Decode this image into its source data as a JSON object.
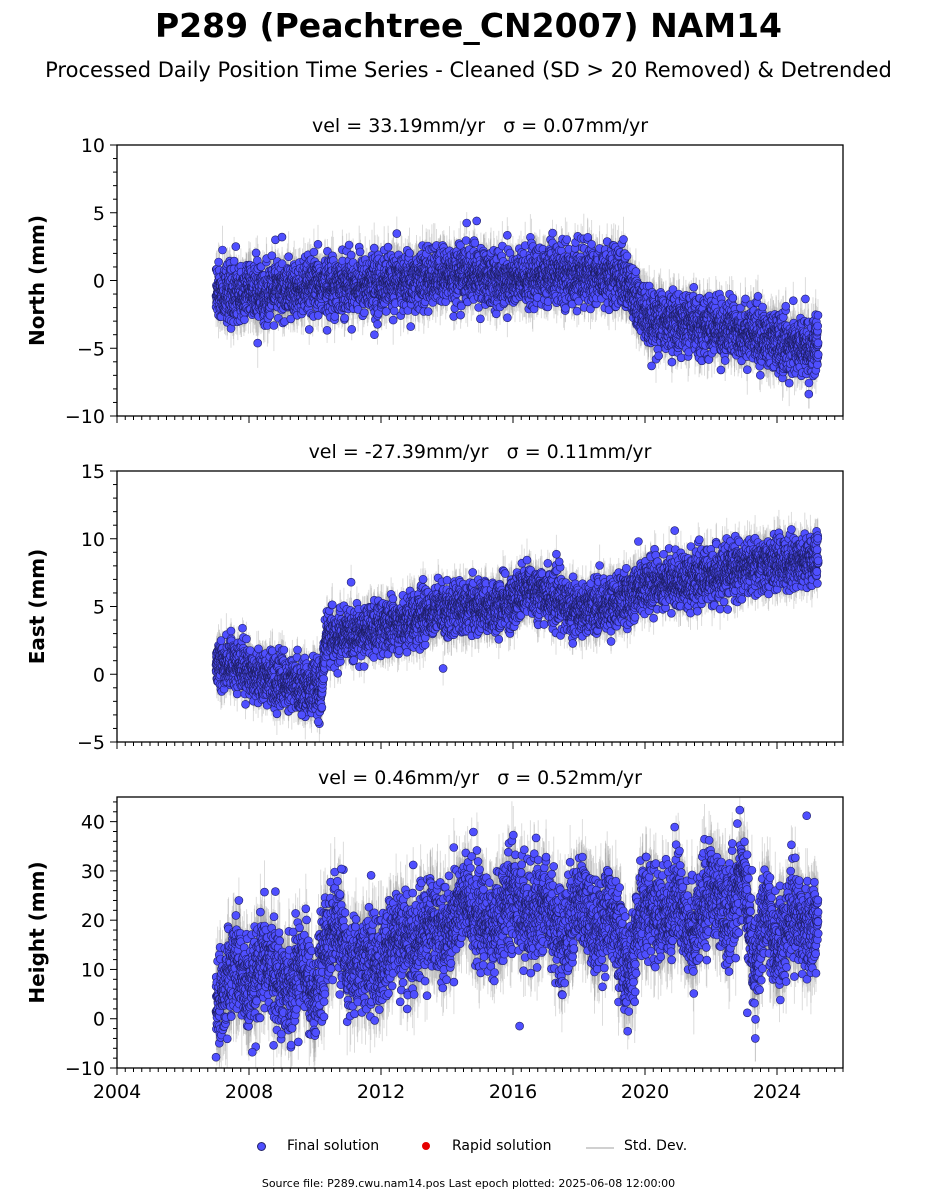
{
  "figure": {
    "title": "P289 (Peachtree_CN2007) NAM14",
    "subtitle": "Processed Daily Position Time Series - Cleaned (SD > 20 Removed) & Detrended",
    "footer": "Source file: P289.cwu.nam14.pos  Last epoch plotted: 2025-06-08 12:00:00",
    "legend": {
      "final": "Final solution",
      "rapid": "Rapid solution",
      "std": "Std. Dev."
    },
    "colors": {
      "final_fill": "#4f4fff",
      "final_edge": "#1e1e64",
      "rapid": "#e60000",
      "std_dev": "#9a9a9a"
    }
  },
  "chart_data": [
    {
      "type": "scatter",
      "title": "vel = 33.19mm/yr   σ = 0.07mm/yr",
      "ylabel": "North (mm)",
      "xlim": [
        2004,
        2026
      ],
      "ylim": [
        -10,
        10
      ],
      "xticks": [
        2004,
        2008,
        2012,
        2016,
        2020,
        2024
      ],
      "yticks": [
        -10,
        -5,
        0,
        5,
        10
      ],
      "show_xtick_labels": false,
      "data_range": [
        2007.0,
        2025.25
      ],
      "series": [
        {
          "values": [
            [
              2007.0,
              -0.8
            ],
            [
              2007.5,
              -1.0
            ],
            [
              2008.0,
              -0.9
            ],
            [
              2008.5,
              -1.0
            ],
            [
              2009.0,
              -0.7
            ],
            [
              2009.5,
              -0.8
            ],
            [
              2010.0,
              -0.5
            ],
            [
              2010.5,
              -0.3
            ],
            [
              2011.0,
              -0.2
            ],
            [
              2011.5,
              -0.3
            ],
            [
              2012.0,
              -0.2
            ],
            [
              2012.5,
              -0.1
            ],
            [
              2013.0,
              0.0
            ],
            [
              2013.5,
              0.2
            ],
            [
              2014.0,
              0.4
            ],
            [
              2014.5,
              0.5
            ],
            [
              2015.0,
              0.3
            ],
            [
              2015.5,
              0.1
            ],
            [
              2016.0,
              0.0
            ],
            [
              2016.5,
              0.2
            ],
            [
              2017.0,
              0.4
            ],
            [
              2017.5,
              0.5
            ],
            [
              2018.0,
              0.5
            ],
            [
              2018.5,
              0.4
            ],
            [
              2019.0,
              0.4
            ],
            [
              2019.4,
              0.2
            ],
            [
              2019.8,
              -2.0
            ],
            [
              2020.2,
              -2.8
            ],
            [
              2020.6,
              -3.0
            ],
            [
              2021.0,
              -3.2
            ],
            [
              2021.5,
              -3.3
            ],
            [
              2022.0,
              -3.4
            ],
            [
              2022.5,
              -3.6
            ],
            [
              2023.0,
              -3.8
            ],
            [
              2023.5,
              -4.2
            ],
            [
              2024.0,
              -4.6
            ],
            [
              2024.5,
              -4.8
            ],
            [
              2025.0,
              -5.0
            ],
            [
              2025.25,
              -4.9
            ]
          ],
          "scatter": 1.0,
          "outliers": [
            [
              2007.6,
              2.5
            ],
            [
              2008.8,
              3.0
            ],
            [
              2009.0,
              3.2
            ],
            [
              2014.9,
              4.4
            ],
            [
              2017.2,
              3.5
            ],
            [
              2011.8,
              -4.0
            ],
            [
              2012.9,
              -3.4
            ],
            [
              2020.2,
              -6.3
            ],
            [
              2022.3,
              -6.6
            ]
          ]
        }
      ]
    },
    {
      "type": "scatter",
      "title": "vel = -27.39mm/yr   σ = 0.11mm/yr",
      "ylabel": "East (mm)",
      "xlim": [
        2004,
        2026
      ],
      "ylim": [
        -5,
        15
      ],
      "xticks": [
        2004,
        2008,
        2012,
        2016,
        2020,
        2024
      ],
      "yticks": [
        -5,
        0,
        5,
        10,
        15
      ],
      "show_xtick_labels": false,
      "data_range": [
        2007.0,
        2025.25
      ],
      "series": [
        {
          "values": [
            [
              2007.0,
              0.6
            ],
            [
              2007.5,
              0.9
            ],
            [
              2008.0,
              0.3
            ],
            [
              2008.5,
              -0.2
            ],
            [
              2009.0,
              -0.6
            ],
            [
              2009.5,
              -0.8
            ],
            [
              2010.0,
              -1.0
            ],
            [
              2010.2,
              -1.2
            ],
            [
              2010.3,
              2.5
            ],
            [
              2010.7,
              2.7
            ],
            [
              2011.0,
              2.9
            ],
            [
              2011.5,
              3.1
            ],
            [
              2012.0,
              3.4
            ],
            [
              2012.5,
              3.7
            ],
            [
              2013.0,
              4.1
            ],
            [
              2013.5,
              4.6
            ],
            [
              2014.0,
              4.8
            ],
            [
              2014.5,
              5.0
            ],
            [
              2015.0,
              4.9
            ],
            [
              2015.5,
              4.9
            ],
            [
              2016.0,
              5.4
            ],
            [
              2016.5,
              6.3
            ],
            [
              2017.0,
              5.8
            ],
            [
              2017.5,
              5.2
            ],
            [
              2018.0,
              4.8
            ],
            [
              2018.5,
              5.0
            ],
            [
              2019.0,
              5.2
            ],
            [
              2019.5,
              5.7
            ],
            [
              2020.0,
              6.6
            ],
            [
              2020.5,
              6.8
            ],
            [
              2021.0,
              6.9
            ],
            [
              2021.5,
              7.0
            ],
            [
              2022.0,
              7.2
            ],
            [
              2022.5,
              7.5
            ],
            [
              2023.0,
              7.9
            ],
            [
              2023.5,
              8.0
            ],
            [
              2024.0,
              8.2
            ],
            [
              2024.5,
              8.3
            ],
            [
              2025.0,
              8.5
            ],
            [
              2025.25,
              8.4
            ]
          ],
          "scatter": 0.9,
          "outliers": [
            [
              2009.6,
              -3.0
            ],
            [
              2010.1,
              -3.5
            ],
            [
              2020.9,
              10.6
            ],
            [
              2019.8,
              9.8
            ],
            [
              2020.8,
              4.5
            ],
            [
              2017.4,
              8.3
            ]
          ]
        }
      ]
    },
    {
      "type": "scatter",
      "title": "vel = 0.46mm/yr   σ = 0.52mm/yr",
      "ylabel": "Height (mm)",
      "xlim": [
        2004,
        2026
      ],
      "ylim": [
        -10,
        45
      ],
      "xticks": [
        2004,
        2008,
        2012,
        2016,
        2020,
        2024
      ],
      "yticks": [
        -10,
        0,
        10,
        20,
        30,
        40
      ],
      "show_xtick_labels": true,
      "data_range": [
        2007.0,
        2025.25
      ],
      "series": [
        {
          "values": [
            [
              2007.0,
              2.0
            ],
            [
              2007.3,
              6.0
            ],
            [
              2007.6,
              12.0
            ],
            [
              2008.0,
              5.0
            ],
            [
              2008.5,
              12.0
            ],
            [
              2008.9,
              8.0
            ],
            [
              2009.3,
              6.0
            ],
            [
              2009.6,
              13.0
            ],
            [
              2010.0,
              3.0
            ],
            [
              2010.3,
              15.0
            ],
            [
              2010.7,
              19.0
            ],
            [
              2011.0,
              10.0
            ],
            [
              2011.5,
              12.0
            ],
            [
              2012.0,
              10.0
            ],
            [
              2012.5,
              18.0
            ],
            [
              2013.0,
              14.0
            ],
            [
              2013.5,
              20.0
            ],
            [
              2014.0,
              17.0
            ],
            [
              2014.5,
              24.0
            ],
            [
              2015.0,
              20.0
            ],
            [
              2015.5,
              18.0
            ],
            [
              2016.0,
              26.0
            ],
            [
              2016.5,
              20.0
            ],
            [
              2017.0,
              24.0
            ],
            [
              2017.5,
              15.0
            ],
            [
              2018.0,
              24.0
            ],
            [
              2018.5,
              18.0
            ],
            [
              2019.0,
              22.0
            ],
            [
              2019.5,
              8.0
            ],
            [
              2020.0,
              24.0
            ],
            [
              2020.5,
              20.0
            ],
            [
              2021.0,
              24.0
            ],
            [
              2021.5,
              17.0
            ],
            [
              2022.0,
              27.0
            ],
            [
              2022.5,
              20.0
            ],
            [
              2023.0,
              30.0
            ],
            [
              2023.3,
              10.0
            ],
            [
              2023.7,
              22.0
            ],
            [
              2024.0,
              14.0
            ],
            [
              2024.5,
              22.0
            ],
            [
              2025.0,
              18.0
            ],
            [
              2025.25,
              20.0
            ]
          ],
          "scatter": 4.5,
          "outliers": [
            [
              2007.0,
              -7.8
            ],
            [
              2008.1,
              -6.8
            ],
            [
              2008.8,
              25.8
            ],
            [
              2010.8,
              30.4
            ],
            [
              2011.7,
              29.1
            ],
            [
              2014.8,
              37.9
            ],
            [
              2016.7,
              36.7
            ],
            [
              2020.9,
              38.9
            ],
            [
              2022.8,
              39.6
            ],
            [
              2024.9,
              41.2
            ],
            [
              2023.1,
              1.2
            ],
            [
              2024.1,
              3.8
            ],
            [
              2016.2,
              -1.5
            ]
          ]
        }
      ]
    }
  ]
}
